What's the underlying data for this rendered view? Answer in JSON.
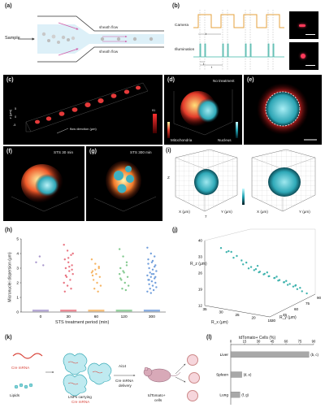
{
  "panel_a": {
    "label": "(a)",
    "sample": "Sample",
    "sheath_top": "sheath flow",
    "sheath_bottom": "sheath flow"
  },
  "panel_b": {
    "label": "(b)",
    "camera": "Camera",
    "illumination": "Illumination",
    "t1": "t",
    "t2": "t",
    "t3": "t"
  },
  "panel_c": {
    "label": "(c)",
    "flow": "flow direction (μm)",
    "z": "z (μm)",
    "ticks_z": [
      "5",
      "0",
      "-5"
    ],
    "extra": "0.1",
    "scale_right": "91"
  },
  "panel_d": {
    "label": "(d)",
    "note": "No treatment",
    "mito": "Mitochondria",
    "nuc": "Nucleus"
  },
  "panel_e": {
    "label": "(e)"
  },
  "panel_f": {
    "label": "(f)",
    "note": "STS 30 min"
  },
  "panel_g": {
    "label": "(g)",
    "note": "STS 300 min"
  },
  "panel_i": {
    "label": "(i)",
    "x1": "X (μm)",
    "y1": "Y (μm)",
    "x2": "X (μm)",
    "y2": "Y (μm)",
    "z": "Z",
    "seven": "7"
  },
  "chart_h": {
    "label": "(h)",
    "chart_data": {
      "type": "scatter",
      "categories": [
        "0",
        "30",
        "60",
        "120",
        "300"
      ],
      "xlabel": "STS treatment period (min)",
      "ylabel": "Micronuclei dispersion (μm)",
      "ylim": [
        0,
        5
      ],
      "yticks": [
        "0",
        "1",
        "2",
        "3",
        "4",
        "5"
      ],
      "series": [
        {
          "category": "0",
          "color": "#9a86c4",
          "values": [
            3.4,
            3.8,
            3.2
          ]
        },
        {
          "category": "30",
          "color": "#e55d6c",
          "values": [
            4.6,
            4.2,
            3.9,
            3.6,
            3.4,
            3.2,
            3.0,
            2.8,
            2.6,
            2.4,
            2.2,
            2.0,
            1.8,
            1.6,
            1.4,
            3.7,
            2.9,
            2.5,
            3.1,
            4.0
          ]
        },
        {
          "category": "60",
          "color": "#f4a84a",
          "values": [
            3.6,
            3.3,
            3.0,
            2.8,
            2.6,
            2.4,
            2.2,
            2.0,
            1.8,
            1.6,
            1.4,
            2.7,
            2.9,
            3.1,
            2.5
          ]
        },
        {
          "category": "120",
          "color": "#6cc07a",
          "values": [
            4.3,
            3.8,
            3.4,
            3.0,
            2.7,
            2.4,
            2.2,
            2.0,
            1.8,
            1.6,
            1.5,
            2.6,
            2.8,
            3.2,
            2.3
          ]
        },
        {
          "category": "300",
          "color": "#5b8fd6",
          "values": [
            4.4,
            4.0,
            3.8,
            3.6,
            3.4,
            3.2,
            3.0,
            2.9,
            2.8,
            2.7,
            2.6,
            2.5,
            2.4,
            2.3,
            2.2,
            2.1,
            2.0,
            1.9,
            1.8,
            1.7,
            1.6,
            1.5,
            1.4,
            1.3,
            3.1,
            3.3,
            2.6,
            2.4,
            2.2,
            3.5
          ]
        }
      ]
    }
  },
  "chart_j": {
    "label": "(j)",
    "chart_data": {
      "type": "scatter",
      "zlabel": "R_z (μm)",
      "xlabel": "R_x (μm)",
      "ylabel": "R_y (μm)",
      "zticks": [
        "40",
        "33",
        "26",
        "19",
        "12"
      ],
      "xticks": [
        "35",
        "30",
        "25",
        "20",
        "15"
      ],
      "yticks": [
        "30",
        "45",
        "60",
        "75",
        "90"
      ],
      "points": [
        [
          30,
          40,
          35
        ],
        [
          28,
          38,
          33
        ],
        [
          26,
          42,
          30
        ],
        [
          25,
          45,
          28
        ],
        [
          24,
          48,
          27
        ],
        [
          23,
          50,
          26
        ],
        [
          22,
          52,
          25
        ],
        [
          21,
          55,
          24
        ],
        [
          20,
          58,
          23
        ],
        [
          19,
          60,
          22
        ],
        [
          18,
          62,
          21
        ],
        [
          17,
          65,
          20
        ],
        [
          16,
          68,
          19
        ],
        [
          15,
          70,
          18
        ],
        [
          26,
          40,
          32
        ],
        [
          24,
          44,
          29
        ],
        [
          22,
          47,
          27
        ],
        [
          20,
          50,
          25
        ],
        [
          18,
          54,
          23
        ],
        [
          16,
          58,
          21
        ],
        [
          14,
          62,
          19
        ],
        [
          12,
          66,
          17
        ],
        [
          28,
          35,
          36
        ],
        [
          27,
          38,
          34
        ],
        [
          25,
          42,
          31
        ],
        [
          23,
          46,
          28
        ],
        [
          21,
          49,
          26
        ],
        [
          19,
          53,
          24
        ],
        [
          17,
          57,
          22
        ],
        [
          15,
          61,
          20
        ],
        [
          13,
          64,
          18
        ],
        [
          22,
          44,
          30
        ],
        [
          20,
          48,
          27
        ],
        [
          18,
          52,
          25
        ],
        [
          16,
          56,
          23
        ],
        [
          14,
          60,
          21
        ],
        [
          30,
          30,
          38
        ],
        [
          29,
          33,
          36
        ]
      ]
    }
  },
  "panel_k": {
    "label": "(k)",
    "cre_mrna": "Cre mRNA",
    "lipids": "Lipids",
    "lnps": "LNPs carrying",
    "lnps2": "Cre mRNA",
    "ai14": "Ai14",
    "delivery": "Cre mRNA",
    "delivery2": "delivery",
    "cells": "tdTomato+",
    "cells2": "cells"
  },
  "chart_l": {
    "label": "(l)",
    "chart_data": {
      "type": "bar",
      "title": "tdTomato+ Cells (%)",
      "categories": [
        "Liver",
        "Spleen",
        "Lung"
      ],
      "values": [
        85,
        12,
        10
      ],
      "annotations": [
        "(b, c)",
        "(d, e)",
        "(f, g)"
      ],
      "xlim": [
        0,
        90
      ],
      "xticks": [
        "0",
        "15",
        "30",
        "45",
        "60",
        "75",
        "90"
      ]
    }
  }
}
